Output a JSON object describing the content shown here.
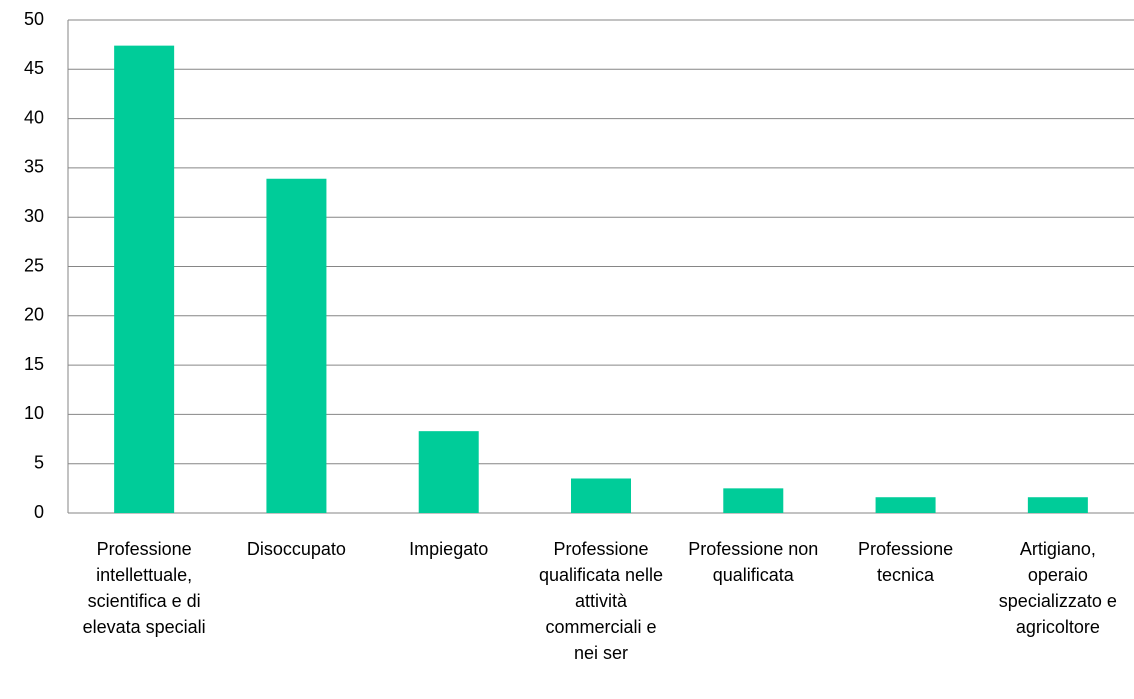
{
  "chart_data": {
    "type": "bar",
    "categories": [
      "Professione intellettuale, scientifica e di elevata speciali",
      "Disoccupato",
      "Impiegato",
      "Professione qualificata nelle attività commerciali e nei ser",
      "Professione non qualificata",
      "Professione tecnica",
      "Artigiano, operaio specializzato e agricoltore"
    ],
    "values": [
      47.4,
      33.9,
      8.3,
      3.5,
      2.5,
      1.6,
      1.6
    ],
    "color": "#00cc99",
    "ylim": [
      0,
      50
    ],
    "yticks": [
      0,
      5,
      10,
      15,
      20,
      25,
      30,
      35,
      40,
      45,
      50
    ],
    "grid": true
  }
}
